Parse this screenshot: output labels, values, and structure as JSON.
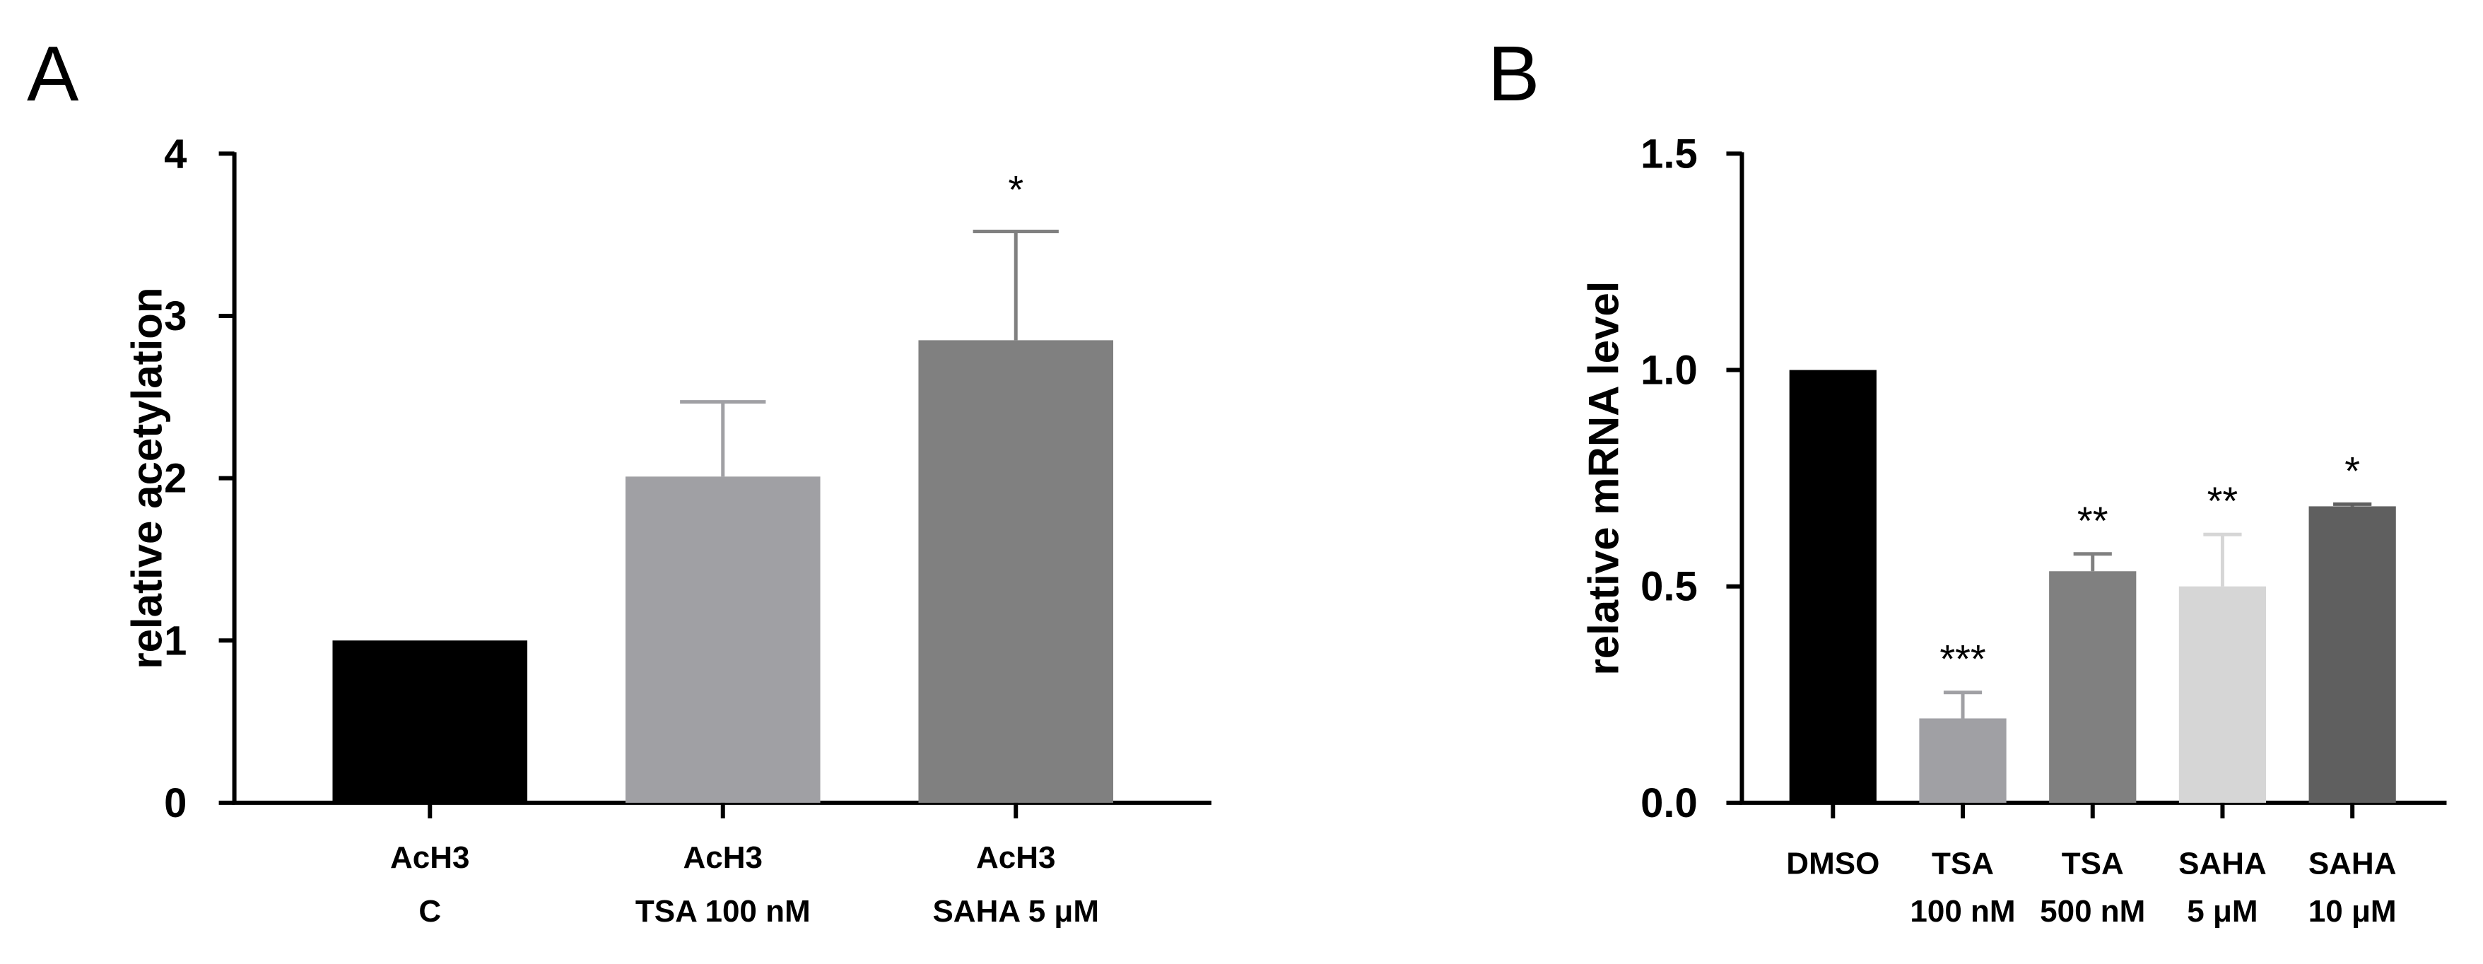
{
  "panels": {
    "a": {
      "label": "A"
    },
    "b": {
      "label": "B"
    }
  },
  "chart_data": [
    {
      "type": "bar",
      "panel": "A",
      "ylabel": "relative acetylation",
      "xlabel": "",
      "ylim": [
        0,
        4
      ],
      "yticks": [
        "0",
        "1",
        "2",
        "3",
        "4"
      ],
      "categories": [
        {
          "line1": "AcH3",
          "line2": "C"
        },
        {
          "line1": "AcH3",
          "line2": "TSA 100 nM"
        },
        {
          "line1": "AcH3",
          "line2": "SAHA 5 μM"
        }
      ],
      "values": [
        1.0,
        2.01,
        2.85
      ],
      "errors": [
        0,
        0.46,
        0.67
      ],
      "significance": [
        "",
        "",
        "*"
      ],
      "colors": [
        "#000000",
        "#a0a0a4",
        "#808080"
      ]
    },
    {
      "type": "bar",
      "panel": "B",
      "ylabel": "relative mRNA level",
      "xlabel": "",
      "ylim": [
        0,
        1.5
      ],
      "yticks": [
        "0.0",
        "0.5",
        "1.0",
        "1.5"
      ],
      "categories": [
        {
          "line1": "DMSO",
          "line2": ""
        },
        {
          "line1": "TSA",
          "line2": "100 nM"
        },
        {
          "line1": "TSA",
          "line2": "500 nM"
        },
        {
          "line1": "SAHA",
          "line2": "5 μM"
        },
        {
          "line1": "SAHA",
          "line2": "10 μM"
        }
      ],
      "values": [
        1.0,
        0.195,
        0.535,
        0.5,
        0.685
      ],
      "errors": [
        0,
        0.06,
        0.04,
        0.12,
        0.005
      ],
      "significance": [
        "",
        "***",
        "**",
        "**",
        "*"
      ],
      "colors": [
        "#000000",
        "#a0a0a4",
        "#808080",
        "#d6d6d6",
        "#5f5f5f"
      ]
    }
  ]
}
